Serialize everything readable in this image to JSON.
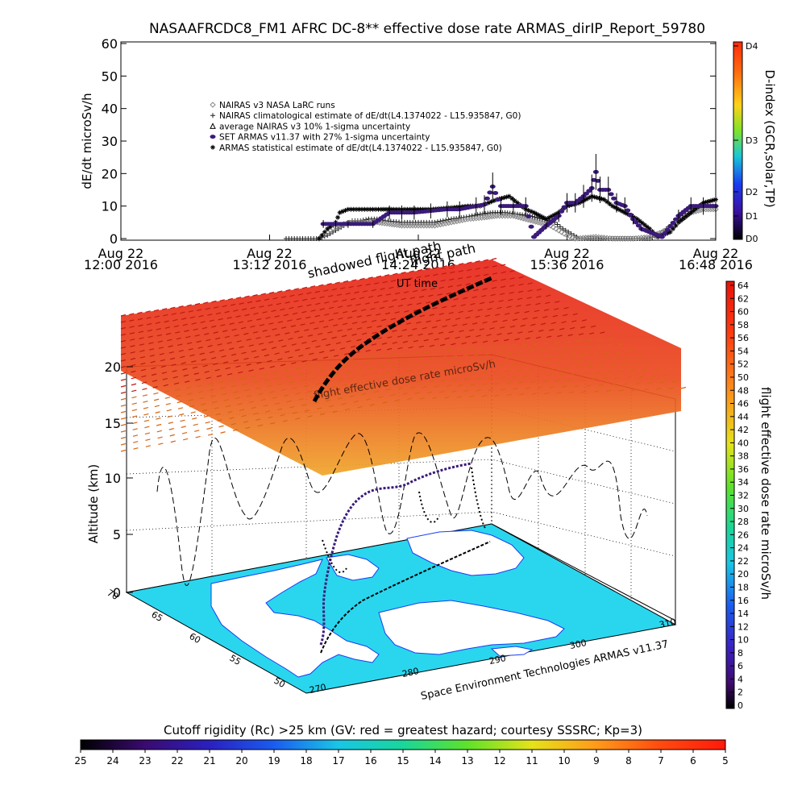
{
  "title": "NASAAFRCDC8_FM1 AFRC DC-8** effective dose rate ARMAS_dirIP_Report_59780",
  "colors": {
    "nairas_light": "#8a8a8a",
    "armas_dark": "#000000",
    "set_armas_fill": "#1a1aee",
    "set_armas_purple": "#3b1a7a",
    "flight_path": "#000000",
    "land": "#ffffff",
    "ocean": "#2ad6ee",
    "dose_high": "#e8251b",
    "dose_mid": "#f08a22"
  },
  "chart_data": [
    {
      "type": "line",
      "ylabel": "dE/dt microSv/h",
      "xlabel": "",
      "ylim": [
        0,
        60
      ],
      "y_ticks": [
        "60",
        "50",
        "40",
        "30",
        "20",
        "10",
        "0"
      ],
      "x_ticks": [
        {
          "line1": "Aug 22",
          "line2": "12:00 2016"
        },
        {
          "line1": "Aug 22",
          "line2": "13:12 2016"
        },
        {
          "line1": "Aug 22",
          "line2": "14:24 2016"
        },
        {
          "line1": "Aug 22",
          "line2": "15:36 2016"
        },
        {
          "line1": "Aug 22",
          "line2": "16:48 2016"
        }
      ],
      "x_range_minutes": [
        0,
        288
      ],
      "legend": [
        {
          "symbol": "diamond",
          "label": "NAIRAS v3 NASA LaRC runs"
        },
        {
          "symbol": "plus",
          "label": "NAIRAS climatological estimate of dE/dt(L4.1374022 - L15.935847, G0)"
        },
        {
          "symbol": "triangle",
          "label": "average NAIRAS v3 10% 1-sigma uncertainty"
        },
        {
          "symbol": "filled-circle",
          "label": "SET ARMAS v11.37 with 27% 1-sigma uncertainty"
        },
        {
          "symbol": "asterisk",
          "label": "ARMAS statistical estimate of dE/dt(L4.1374022 - L15.935847, G0)"
        }
      ],
      "legend_placement": "upper-left",
      "series": [
        {
          "symbol": "plus",
          "points": [
            [
              80,
              0
            ],
            [
              96,
              0
            ],
            [
              100,
              1
            ],
            [
              104,
              2.5
            ],
            [
              108,
              4
            ],
            [
              112,
              5.5
            ],
            [
              116,
              5.5
            ],
            [
              120,
              6
            ],
            [
              124,
              6
            ],
            [
              128,
              5.5
            ],
            [
              136,
              5
            ],
            [
              144,
              5
            ],
            [
              152,
              5
            ],
            [
              156,
              5.5
            ],
            [
              160,
              6
            ],
            [
              166,
              6.5
            ],
            [
              170,
              7
            ],
            [
              174,
              7.5
            ],
            [
              180,
              8
            ],
            [
              186,
              8
            ],
            [
              192,
              7.5
            ],
            [
              198,
              7
            ],
            [
              204,
              6
            ],
            [
              210,
              5
            ],
            [
              214,
              3
            ],
            [
              218,
              1.5
            ],
            [
              222,
              0
            ],
            [
              230,
              0
            ],
            [
              240,
              0
            ],
            [
              250,
              0
            ],
            [
              256,
              0
            ],
            [
              260,
              1
            ],
            [
              264,
              3
            ],
            [
              268,
              5
            ],
            [
              272,
              7
            ],
            [
              276,
              9
            ],
            [
              280,
              10
            ],
            [
              284,
              10
            ],
            [
              288,
              10
            ]
          ]
        },
        {
          "symbol": "diamond",
          "points": [
            [
              96,
              0
            ],
            [
              100,
              2
            ],
            [
              104,
              3.5
            ],
            [
              108,
              4.5
            ],
            [
              112,
              5
            ],
            [
              116,
              5
            ],
            [
              124,
              5
            ],
            [
              130,
              4.5
            ],
            [
              136,
              4
            ],
            [
              144,
              4
            ],
            [
              152,
              4
            ],
            [
              160,
              5
            ],
            [
              168,
              6
            ],
            [
              176,
              6.5
            ],
            [
              182,
              7
            ],
            [
              190,
              7
            ],
            [
              196,
              6
            ],
            [
              202,
              5
            ],
            [
              208,
              4
            ],
            [
              212,
              2.5
            ],
            [
              216,
              1
            ],
            [
              220,
              0
            ],
            [
              230,
              0.5
            ],
            [
              238,
              0
            ],
            [
              248,
              0
            ],
            [
              256,
              0.5
            ],
            [
              262,
              2
            ],
            [
              268,
              4
            ],
            [
              272,
              6
            ],
            [
              276,
              8
            ],
            [
              282,
              9
            ],
            [
              288,
              9
            ]
          ]
        },
        {
          "symbol": "asterisk",
          "points": [
            [
              96,
              0
            ],
            [
              100,
              3
            ],
            [
              104,
              5
            ],
            [
              106,
              8
            ],
            [
              110,
              9
            ],
            [
              114,
              9
            ],
            [
              118,
              9
            ],
            [
              122,
              9
            ],
            [
              126,
              9
            ],
            [
              132,
              9
            ],
            [
              140,
              9
            ],
            [
              150,
              9
            ],
            [
              160,
              9.5
            ],
            [
              168,
              10
            ],
            [
              174,
              10
            ],
            [
              178,
              11
            ],
            [
              182,
              12
            ],
            [
              188,
              13
            ],
            [
              192,
              11
            ],
            [
              196,
              9
            ],
            [
              200,
              8
            ],
            [
              206,
              6
            ],
            [
              212,
              8
            ],
            [
              216,
              10
            ],
            [
              222,
              11
            ],
            [
              228,
              13
            ],
            [
              234,
              12
            ],
            [
              238,
              10
            ],
            [
              244,
              8
            ],
            [
              250,
              6
            ],
            [
              256,
              3
            ],
            [
              260,
              0.5
            ],
            [
              266,
              2
            ],
            [
              270,
              5
            ],
            [
              276,
              8
            ],
            [
              282,
              11
            ],
            [
              288,
              12
            ]
          ]
        },
        {
          "symbol": "filled-circle",
          "points": [
            [
              98,
              4.5
            ],
            [
              104,
              4.5
            ],
            [
              110,
              4.5
            ],
            [
              122,
              4.5
            ],
            [
              130,
              8
            ],
            [
              136,
              8
            ],
            [
              142,
              8
            ],
            [
              150,
              8.5
            ],
            [
              158,
              9
            ],
            [
              164,
              9
            ],
            [
              172,
              10
            ],
            [
              176,
              10.5
            ],
            [
              180,
              16
            ],
            [
              184,
              10
            ],
            [
              190,
              10
            ],
            [
              196,
              10
            ],
            [
              200,
              0.5
            ],
            [
              206,
              4
            ],
            [
              212,
              7
            ],
            [
              216,
              11
            ],
            [
              220,
              11
            ],
            [
              224,
              13
            ],
            [
              228,
              15.5
            ],
            [
              230,
              20.5
            ],
            [
              232,
              15
            ],
            [
              236,
              15
            ],
            [
              240,
              11
            ],
            [
              244,
              10
            ],
            [
              248,
              6
            ],
            [
              252,
              3
            ],
            [
              262,
              0.5
            ],
            [
              270,
              7
            ],
            [
              276,
              10
            ],
            [
              282,
              10
            ],
            [
              288,
              10
            ]
          ]
        }
      ],
      "d_index_colorbar": {
        "label": "D-index (GCR,solar,TP)",
        "ticks": [
          "D4",
          "D3",
          "D2",
          "D1",
          "D0"
        ],
        "colors": [
          "#ff2a0a",
          "#ff6a10",
          "#ffd21a",
          "#7fe22a",
          "#19c6d6",
          "#1a3cf0",
          "#3a10a0",
          "#000000"
        ]
      }
    },
    {
      "type": "heatmap",
      "title": "",
      "annotations": [
        "shadowed flight path",
        "flight path",
        "UT time",
        "flight effective dose rate microSv/h",
        "Space Environment Technologies ARMAS v11.37"
      ],
      "zlabel": "Altitude (km)",
      "z_ticks": [
        "20",
        "15",
        "10",
        "5",
        "0"
      ],
      "lat_ticks": [
        "70",
        "65",
        "60",
        "55",
        "50"
      ],
      "lon_ticks": [
        "270",
        "280",
        "290",
        "300",
        "310"
      ],
      "colorbar": {
        "label": "flight effective dose rate microSv/h",
        "range": [
          0,
          64
        ],
        "ticks": [
          "64",
          "62",
          "60",
          "58",
          "56",
          "54",
          "52",
          "50",
          "48",
          "46",
          "44",
          "42",
          "40",
          "38",
          "36",
          "34",
          "32",
          "30",
          "28",
          "26",
          "24",
          "22",
          "20",
          "18",
          "16",
          "14",
          "12",
          "10",
          "8",
          "6",
          "4",
          "2",
          "0"
        ]
      }
    },
    {
      "type": "heatmap",
      "title": "Cutoff rigidity (Rc) >25 km (GV: red = greatest hazard; courtesy SSSRC; Kp=3)",
      "ticks": [
        "25",
        "24",
        "23",
        "22",
        "21",
        "20",
        "19",
        "18",
        "17",
        "16",
        "15",
        "14",
        "13",
        "12",
        "11",
        "10",
        "9",
        "8",
        "7",
        "6",
        "5"
      ]
    }
  ]
}
